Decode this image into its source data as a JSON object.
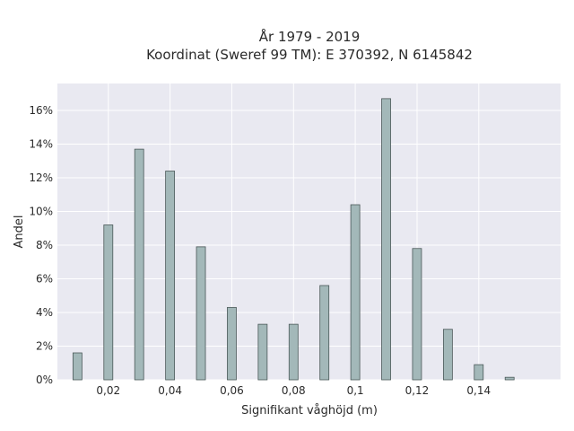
{
  "chart_data": {
    "type": "bar",
    "title_lines": [
      "År 1979 - 2019",
      "Koordinat (Sweref 99 TM): E 370392, N 6145842"
    ],
    "xlabel": "Signifikant våghöjd (m)",
    "ylabel": "Andel",
    "x": [
      0.01,
      0.02,
      0.03,
      0.04,
      0.05,
      0.06,
      0.07,
      0.08,
      0.09,
      0.1,
      0.11,
      0.12,
      0.13,
      0.14,
      0.15
    ],
    "values": [
      1.6,
      9.2,
      13.7,
      12.4,
      7.9,
      4.3,
      3.3,
      3.3,
      5.6,
      10.4,
      16.7,
      7.8,
      3.0,
      0.9,
      0.15
    ],
    "xlim": [
      0.0035,
      0.1665
    ],
    "ylim": [
      0,
      17.6
    ],
    "x_ticks": [
      0.02,
      0.04,
      0.06,
      0.08,
      0.1,
      0.12,
      0.14
    ],
    "x_tick_labels": [
      "0,02",
      "0,04",
      "0,06",
      "0,08",
      "0,1",
      "0,12",
      "0,14"
    ],
    "y_ticks": [
      0,
      2,
      4,
      6,
      8,
      10,
      12,
      14,
      16
    ],
    "y_tick_labels": [
      "0%",
      "2%",
      "4%",
      "6%",
      "8%",
      "10%",
      "12%",
      "14%",
      "16%"
    ],
    "grid": true,
    "bar_color": "#a3b8b9",
    "bar_edge_color": "#4a5858",
    "plot_background": "#e9e9f1",
    "grid_color": "#ffffff"
  }
}
